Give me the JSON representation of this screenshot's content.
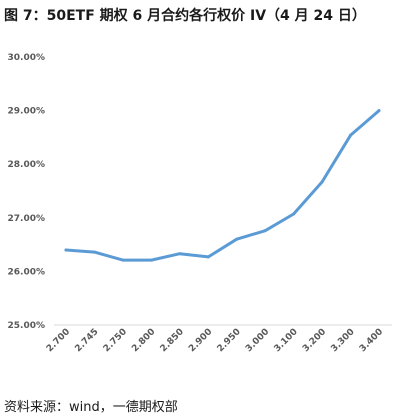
{
  "title": "图 7：50ETF 期权 6 月合约各行权价 IV（4 月 24 日）",
  "source": "资料来源：wind，一德期权部",
  "chart_data": {
    "type": "line",
    "title": "图 7：50ETF 期权 6 月合约各行权价 IV（4 月 24 日）",
    "xlabel": "",
    "ylabel": "",
    "categories": [
      "2.700",
      "2.745",
      "2.750",
      "2.800",
      "2.850",
      "2.900",
      "2.950",
      "3.000",
      "3.100",
      "3.200",
      "3.300",
      "3.400"
    ],
    "series": [
      {
        "values": [
          26.4,
          26.36,
          26.21,
          26.21,
          26.33,
          26.27,
          26.6,
          26.76,
          27.07,
          27.67,
          28.54,
          29.0
        ],
        "color": "#5b9bd5"
      }
    ],
    "ylim": [
      25.0,
      30.0
    ],
    "yticks": [
      "25.00%",
      "26.00%",
      "27.00%",
      "28.00%",
      "29.00%",
      "30.00%"
    ],
    "ytick_values": [
      25,
      26,
      27,
      28,
      29,
      30
    ],
    "grid": false,
    "legend": "none"
  }
}
